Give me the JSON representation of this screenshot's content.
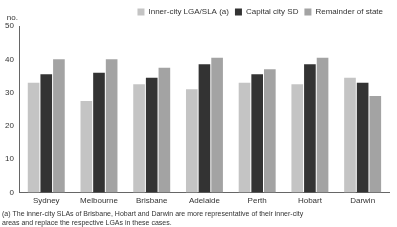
{
  "chart_data": {
    "type": "bar",
    "y_label": "no.",
    "categories": [
      "Sydney",
      "Melbourne",
      "Brisbane",
      "Adelaide",
      "Perth",
      "Hobart",
      "Darwin"
    ],
    "series": [
      {
        "name": "Inner-city LGA/SLA (a)",
        "color": "#c4c4c4",
        "values": [
          33,
          27.5,
          32.5,
          31,
          33,
          32.5,
          34.5
        ]
      },
      {
        "name": "Capital city SD",
        "color": "#333333",
        "values": [
          35.5,
          36,
          34.5,
          38.5,
          35.5,
          38.5,
          33
        ]
      },
      {
        "name": "Remainder of state",
        "color": "#a3a3a3",
        "values": [
          40,
          40,
          37.5,
          40.5,
          37,
          40.5,
          29
        ]
      }
    ],
    "ylim": [
      0,
      50
    ],
    "yticks": [
      0,
      10,
      20,
      30,
      40,
      50
    ],
    "grid": false,
    "legend": "top-right",
    "footnote": [
      "(a) The inner-city SLAs of Brisbane, Hobart and Darwin are more representative of their inner-city",
      "areas and replace the respective LGAs in these cases."
    ]
  }
}
